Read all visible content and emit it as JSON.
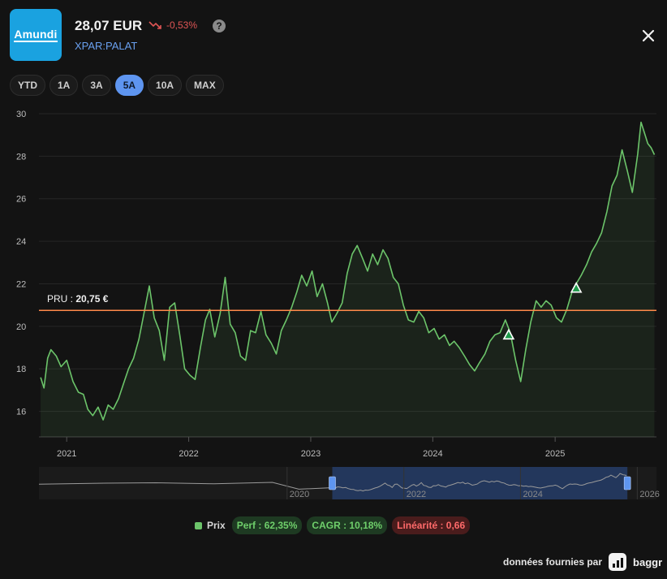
{
  "header": {
    "logo_text": "Amundi",
    "price": "28,07 EUR",
    "change": "-0,53%",
    "help_symbol": "?",
    "ticker": "XPAR:PALAT"
  },
  "ranges": [
    {
      "label": "YTD",
      "active": false
    },
    {
      "label": "1A",
      "active": false
    },
    {
      "label": "3A",
      "active": false
    },
    {
      "label": "5A",
      "active": true
    },
    {
      "label": "10A",
      "active": false
    },
    {
      "label": "MAX",
      "active": false
    }
  ],
  "chart_data": {
    "type": "line",
    "series": [
      {
        "name": "Prix",
        "color": "#6cc46a",
        "points": [
          [
            "2020-10-15",
            17.6
          ],
          [
            "2020-10-25",
            17.1
          ],
          [
            "2020-11-05",
            18.5
          ],
          [
            "2020-11-15",
            18.9
          ],
          [
            "2020-12-01",
            18.6
          ],
          [
            "2020-12-15",
            18.1
          ],
          [
            "2021-01-01",
            18.4
          ],
          [
            "2021-01-20",
            17.4
          ],
          [
            "2021-02-05",
            16.9
          ],
          [
            "2021-02-20",
            16.8
          ],
          [
            "2021-03-05",
            16.1
          ],
          [
            "2021-03-20",
            15.8
          ],
          [
            "2021-04-05",
            16.2
          ],
          [
            "2021-04-20",
            15.6
          ],
          [
            "2021-05-05",
            16.3
          ],
          [
            "2021-05-20",
            16.1
          ],
          [
            "2021-06-05",
            16.6
          ],
          [
            "2021-06-20",
            17.3
          ],
          [
            "2021-07-05",
            18.0
          ],
          [
            "2021-07-20",
            18.5
          ],
          [
            "2021-08-05",
            19.4
          ],
          [
            "2021-08-20",
            20.6
          ],
          [
            "2021-09-05",
            21.9
          ],
          [
            "2021-09-20",
            20.4
          ],
          [
            "2021-10-05",
            19.8
          ],
          [
            "2021-10-20",
            18.4
          ],
          [
            "2021-11-05",
            20.9
          ],
          [
            "2021-11-20",
            21.1
          ],
          [
            "2021-12-05",
            19.6
          ],
          [
            "2021-12-20",
            18.0
          ],
          [
            "2022-01-05",
            17.7
          ],
          [
            "2022-01-20",
            17.5
          ],
          [
            "2022-02-05",
            19.0
          ],
          [
            "2022-02-20",
            20.3
          ],
          [
            "2022-03-05",
            20.8
          ],
          [
            "2022-03-20",
            19.5
          ],
          [
            "2022-04-05",
            20.6
          ],
          [
            "2022-04-20",
            22.3
          ],
          [
            "2022-05-05",
            20.1
          ],
          [
            "2022-05-20",
            19.7
          ],
          [
            "2022-06-05",
            18.6
          ],
          [
            "2022-06-20",
            18.4
          ],
          [
            "2022-07-05",
            19.8
          ],
          [
            "2022-07-20",
            19.7
          ],
          [
            "2022-08-05",
            20.7
          ],
          [
            "2022-08-20",
            19.6
          ],
          [
            "2022-09-05",
            19.2
          ],
          [
            "2022-09-20",
            18.7
          ],
          [
            "2022-10-05",
            19.8
          ],
          [
            "2022-10-20",
            20.3
          ],
          [
            "2022-11-05",
            20.9
          ],
          [
            "2022-11-20",
            21.6
          ],
          [
            "2022-12-05",
            22.4
          ],
          [
            "2022-12-20",
            21.9
          ],
          [
            "2023-01-05",
            22.6
          ],
          [
            "2023-01-20",
            21.4
          ],
          [
            "2023-02-05",
            22.0
          ],
          [
            "2023-02-20",
            21.1
          ],
          [
            "2023-03-05",
            20.2
          ],
          [
            "2023-03-20",
            20.6
          ],
          [
            "2023-04-05",
            21.1
          ],
          [
            "2023-04-20",
            22.5
          ],
          [
            "2023-05-05",
            23.4
          ],
          [
            "2023-05-20",
            23.8
          ],
          [
            "2023-06-05",
            23.2
          ],
          [
            "2023-06-20",
            22.6
          ],
          [
            "2023-07-05",
            23.4
          ],
          [
            "2023-07-20",
            22.9
          ],
          [
            "2023-08-05",
            23.6
          ],
          [
            "2023-08-20",
            23.2
          ],
          [
            "2023-09-05",
            22.3
          ],
          [
            "2023-09-20",
            22.0
          ],
          [
            "2023-10-05",
            21.0
          ],
          [
            "2023-10-20",
            20.3
          ],
          [
            "2023-11-05",
            20.2
          ],
          [
            "2023-11-20",
            20.7
          ],
          [
            "2023-12-05",
            20.4
          ],
          [
            "2023-12-20",
            19.7
          ],
          [
            "2024-01-05",
            19.9
          ],
          [
            "2024-01-20",
            19.4
          ],
          [
            "2024-02-05",
            19.6
          ],
          [
            "2024-02-20",
            19.1
          ],
          [
            "2024-03-05",
            19.3
          ],
          [
            "2024-03-20",
            19.0
          ],
          [
            "2024-04-05",
            18.6
          ],
          [
            "2024-04-20",
            18.2
          ],
          [
            "2024-05-05",
            17.9
          ],
          [
            "2024-05-20",
            18.3
          ],
          [
            "2024-06-05",
            18.7
          ],
          [
            "2024-06-20",
            19.3
          ],
          [
            "2024-07-05",
            19.6
          ],
          [
            "2024-07-20",
            19.7
          ],
          [
            "2024-08-05",
            20.3
          ],
          [
            "2024-08-20",
            19.7
          ],
          [
            "2024-09-05",
            18.4
          ],
          [
            "2024-09-20",
            17.4
          ],
          [
            "2024-10-05",
            18.9
          ],
          [
            "2024-10-20",
            20.2
          ],
          [
            "2024-11-05",
            21.2
          ],
          [
            "2024-11-20",
            20.9
          ],
          [
            "2024-12-05",
            21.2
          ],
          [
            "2024-12-20",
            21.0
          ],
          [
            "2025-01-05",
            20.4
          ],
          [
            "2025-01-20",
            20.2
          ],
          [
            "2025-02-05",
            20.8
          ],
          [
            "2025-02-20",
            21.6
          ],
          [
            "2025-03-05",
            22.0
          ],
          [
            "2025-03-20",
            22.4
          ],
          [
            "2025-04-05",
            22.9
          ],
          [
            "2025-04-20",
            23.5
          ],
          [
            "2025-05-05",
            23.9
          ],
          [
            "2025-05-20",
            24.4
          ],
          [
            "2025-06-05",
            25.4
          ],
          [
            "2025-06-20",
            26.6
          ],
          [
            "2025-07-05",
            27.1
          ],
          [
            "2025-07-20",
            28.3
          ],
          [
            "2025-08-05",
            27.3
          ],
          [
            "2025-08-20",
            26.3
          ],
          [
            "2025-09-05",
            28.1
          ],
          [
            "2025-09-15",
            29.6
          ],
          [
            "2025-09-25",
            29.1
          ],
          [
            "2025-10-05",
            28.6
          ],
          [
            "2025-10-15",
            28.4
          ],
          [
            "2025-10-25",
            28.07
          ]
        ]
      }
    ],
    "x_ticks": [
      "2021",
      "2022",
      "2023",
      "2024",
      "2025"
    ],
    "y_ticks": [
      16,
      18,
      20,
      22,
      24,
      26,
      28,
      30
    ],
    "ylim": [
      14.8,
      30
    ],
    "xlim": [
      "2020-10-10",
      "2025-10-31"
    ],
    "reference_line": {
      "label_prefix": "PRU : ",
      "label_value": "20,75 €",
      "value": 20.75,
      "color": "#ff8a4a"
    },
    "markers": [
      {
        "date": "2024-08-15",
        "value": 19.6
      },
      {
        "date": "2025-03-05",
        "value": 21.8
      }
    ],
    "navigator": {
      "ticks": [
        "2020",
        "2022",
        "2024",
        "2026"
      ],
      "selection_range": [
        "2020-10-10",
        "2025-10-31"
      ]
    }
  },
  "legend": {
    "series_label": "Prix",
    "perf": "Perf : 62,35%",
    "cagr": "CAGR : 10,18%",
    "linearite": "Linéarité : 0,66"
  },
  "credit": {
    "text": "données fournies par",
    "brand": "baggr"
  }
}
